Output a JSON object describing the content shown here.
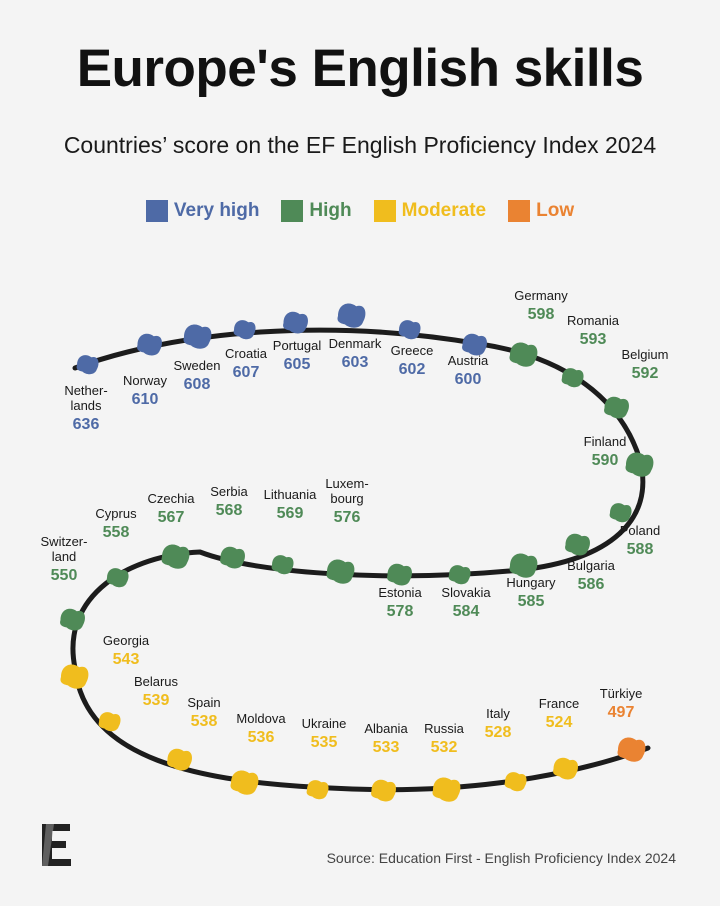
{
  "colors": {
    "very_high": "#4e6aa6",
    "high": "#4f8a57",
    "moderate": "#f0bd1e",
    "low": "#ea8332",
    "track": "#1c1c1c"
  },
  "header": {
    "title": "Europe's English skills",
    "subtitle": "Countries’ score on the EF English Proficiency Index 2024"
  },
  "legend": [
    {
      "label": "Very high",
      "level": "very_high"
    },
    {
      "label": "High",
      "level": "high"
    },
    {
      "label": "Moderate",
      "level": "moderate"
    },
    {
      "label": "Low",
      "level": "low"
    }
  ],
  "footer": {
    "source": "Source: Education First - English Proficiency Index 2024",
    "logo_letter": "E"
  },
  "chart_data": {
    "type": "ranked-path",
    "categories": [
      "Netherlands",
      "Norway",
      "Sweden",
      "Croatia",
      "Portugal",
      "Denmark",
      "Greece",
      "Austria",
      "Germany",
      "Romania",
      "Belgium",
      "Finland",
      "Poland",
      "Bulgaria",
      "Hungary",
      "Slovakia",
      "Estonia",
      "Luxembourg",
      "Lithuania",
      "Serbia",
      "Czechia",
      "Cyprus",
      "Switzerland",
      "Georgia",
      "Belarus",
      "Spain",
      "Moldova",
      "Ukraine",
      "Albania",
      "Russia",
      "Italy",
      "France",
      "Türkiye"
    ],
    "points": [
      {
        "label": "Nether-\nlands",
        "value": 636,
        "level": "very_high"
      },
      {
        "label": "Norway",
        "value": 610,
        "level": "very_high"
      },
      {
        "label": "Sweden",
        "value": 608,
        "level": "very_high"
      },
      {
        "label": "Croatia",
        "value": 607,
        "level": "very_high"
      },
      {
        "label": "Portugal",
        "value": 605,
        "level": "very_high"
      },
      {
        "label": "Denmark",
        "value": 603,
        "level": "very_high"
      },
      {
        "label": "Greece",
        "value": 602,
        "level": "very_high"
      },
      {
        "label": "Austria",
        "value": 600,
        "level": "very_high"
      },
      {
        "label": "Germany",
        "value": 598,
        "level": "high"
      },
      {
        "label": "Romania",
        "value": 593,
        "level": "high"
      },
      {
        "label": "Belgium",
        "value": 592,
        "level": "high"
      },
      {
        "label": "Finland",
        "value": 590,
        "level": "high"
      },
      {
        "label": "Poland",
        "value": 588,
        "level": "high"
      },
      {
        "label": "Bulgaria",
        "value": 586,
        "level": "high"
      },
      {
        "label": "Hungary",
        "value": 585,
        "level": "high"
      },
      {
        "label": "Slovakia",
        "value": 584,
        "level": "high"
      },
      {
        "label": "Estonia",
        "value": 578,
        "level": "high"
      },
      {
        "label": "Luxem-\nbourg",
        "value": 576,
        "level": "high"
      },
      {
        "label": "Lithuania",
        "value": 569,
        "level": "high"
      },
      {
        "label": "Serbia",
        "value": 568,
        "level": "high"
      },
      {
        "label": "Czechia",
        "value": 567,
        "level": "high"
      },
      {
        "label": "Cyprus",
        "value": 558,
        "level": "high"
      },
      {
        "label": "Switzer-\nland",
        "value": 550,
        "level": "high"
      },
      {
        "label": "Georgia",
        "value": 543,
        "level": "moderate"
      },
      {
        "label": "Belarus",
        "value": 539,
        "level": "moderate"
      },
      {
        "label": "Spain",
        "value": 538,
        "level": "moderate"
      },
      {
        "label": "Moldova",
        "value": 536,
        "level": "moderate"
      },
      {
        "label": "Ukraine",
        "value": 535,
        "level": "moderate"
      },
      {
        "label": "Albania",
        "value": 533,
        "level": "moderate"
      },
      {
        "label": "Russia",
        "value": 532,
        "level": "moderate"
      },
      {
        "label": "Italy",
        "value": 528,
        "level": "moderate"
      },
      {
        "label": "France",
        "value": 524,
        "level": "moderate"
      },
      {
        "label": "Türkiye",
        "value": 497,
        "level": "low"
      }
    ]
  }
}
